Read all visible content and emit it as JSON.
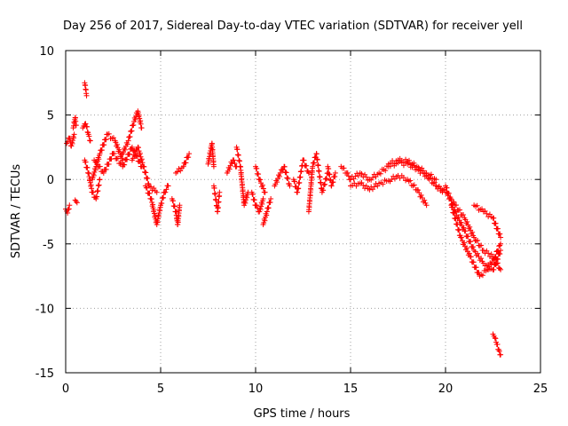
{
  "chart_data": {
    "type": "scatter",
    "title": "Day 256 of 2017, Sidereal Day-to-day VTEC variation (SDTVAR) for receiver yell",
    "xlabel": "GPS time / hours",
    "ylabel": "SDTVAR / TECUs",
    "xlim": [
      0,
      25
    ],
    "ylim": [
      -15,
      10
    ],
    "xticks": [
      "0",
      "5",
      "10",
      "15",
      "20",
      "25"
    ],
    "yticks": [
      "10",
      "5",
      "0",
      "-5",
      "-10",
      "-15"
    ],
    "xtick_values": [
      0,
      5,
      10,
      15,
      20,
      25
    ],
    "ytick_values": [
      10,
      5,
      0,
      -5,
      -10,
      -15
    ],
    "grid": true,
    "marker": "+",
    "series": [
      {
        "name": "SDTVAR",
        "color": "#ff0000",
        "segments": [
          {
            "x": [
              0.05,
              0.2,
              0.3,
              0.45
            ],
            "y": [
              2.8,
              3.2,
              2.6,
              3.5
            ]
          },
          {
            "x": [
              0.0,
              0.1,
              0.2
            ],
            "y": [
              -2.3,
              -2.6,
              -2.0
            ]
          },
          {
            "x": [
              0.4,
              0.5,
              0.55
            ],
            "y": [
              4.0,
              4.8,
              4.2
            ]
          },
          {
            "x": [
              0.5,
              0.6
            ],
            "y": [
              -1.6,
              -1.8
            ]
          },
          {
            "x": [
              1.0,
              1.05,
              1.1
            ],
            "y": [
              7.5,
              7.0,
              6.5
            ]
          },
          {
            "x": [
              0.9,
              1.0,
              1.1,
              1.2,
              1.3
            ],
            "y": [
              4.0,
              4.3,
              4.1,
              3.5,
              3.0
            ]
          },
          {
            "x": [
              1.0,
              1.2,
              1.4,
              1.6,
              1.8
            ],
            "y": [
              1.5,
              0.5,
              -1.0,
              -1.5,
              0.0
            ]
          },
          {
            "x": [
              1.4,
              1.8,
              2.2,
              2.6,
              3.0
            ],
            "y": [
              0.0,
              2.0,
              3.5,
              3.0,
              1.5
            ]
          },
          {
            "x": [
              1.5,
              2.0,
              2.5,
              3.0,
              3.5,
              4.0
            ],
            "y": [
              1.5,
              0.5,
              2.0,
              1.0,
              2.5,
              1.0
            ]
          },
          {
            "x": [
              3.0,
              3.3,
              3.6,
              3.8,
              4.0
            ],
            "y": [
              2.0,
              3.0,
              4.5,
              5.3,
              4.0
            ]
          },
          {
            "x": [
              3.5,
              3.8,
              4.1,
              4.4,
              4.8
            ],
            "y": [
              1.5,
              2.5,
              1.0,
              -0.5,
              -1.0
            ]
          },
          {
            "x": [
              4.2,
              4.5,
              4.8,
              5.0,
              5.2,
              5.4
            ],
            "y": [
              -0.5,
              -1.5,
              -3.5,
              -2.0,
              -1.0,
              -0.5
            ]
          },
          {
            "x": [
              5.6,
              5.8,
              5.9,
              6.0
            ],
            "y": [
              -1.5,
              -2.5,
              -3.5,
              -2.0
            ]
          },
          {
            "x": [
              5.8,
              6.2,
              6.5
            ],
            "y": [
              0.5,
              1.0,
              2.0
            ]
          },
          {
            "x": [
              7.5,
              7.7,
              7.8
            ],
            "y": [
              1.2,
              2.8,
              1.0
            ]
          },
          {
            "x": [
              7.8,
              8.0,
              8.1
            ],
            "y": [
              -0.5,
              -2.5,
              -1.0
            ]
          },
          {
            "x": [
              8.5,
              8.8,
              9.0
            ],
            "y": [
              0.5,
              1.5,
              1.0
            ]
          },
          {
            "x": [
              9.0,
              9.2,
              9.4,
              9.6
            ],
            "y": [
              2.5,
              1.0,
              -2.0,
              -1.0
            ]
          },
          {
            "x": [
              9.8,
              10.0,
              10.2,
              10.4
            ],
            "y": [
              -1.0,
              -2.0,
              -2.5,
              -1.5
            ]
          },
          {
            "x": [
              10.4,
              10.6,
              10.8
            ],
            "y": [
              -3.5,
              -2.5,
              -1.5
            ]
          },
          {
            "x": [
              10.0,
              10.2,
              10.5
            ],
            "y": [
              1.0,
              0.0,
              -1.0
            ]
          },
          {
            "x": [
              11.0,
              11.3,
              11.5,
              11.8
            ],
            "y": [
              -0.5,
              0.5,
              1.0,
              -0.5
            ]
          },
          {
            "x": [
              12.0,
              12.2,
              12.5,
              12.8
            ],
            "y": [
              0.0,
              -1.0,
              1.5,
              0.5
            ]
          },
          {
            "x": [
              12.8,
              13.0,
              13.2,
              13.5,
              13.8
            ],
            "y": [
              -2.5,
              1.0,
              2.0,
              -1.0,
              0.5
            ]
          },
          {
            "x": [
              13.8,
              14.0,
              14.2
            ],
            "y": [
              1.0,
              -0.5,
              0.5
            ]
          },
          {
            "x": [
              14.5,
              14.8,
              15.0,
              15.5,
              16.0,
              16.5,
              17.0,
              17.5,
              18.0,
              18.5,
              19.0,
              19.5,
              20.0
            ],
            "y": [
              1.0,
              0.5,
              0.0,
              0.5,
              0.0,
              0.5,
              1.0,
              1.3,
              1.2,
              0.8,
              0.3,
              -0.5,
              -1.0
            ]
          },
          {
            "x": [
              15.0,
              15.5,
              16.0,
              16.5,
              17.0,
              17.5,
              18.0,
              18.5,
              19.0
            ],
            "y": [
              -0.5,
              -0.3,
              -0.8,
              -0.3,
              -0.1,
              0.3,
              0.0,
              -0.8,
              -2.0
            ]
          },
          {
            "x": [
              17.0,
              17.5,
              18.0,
              18.5,
              19.0,
              19.5
            ],
            "y": [
              1.2,
              1.5,
              1.4,
              1.0,
              0.5,
              0.0
            ]
          },
          {
            "x": [
              19.5,
              20.0,
              20.5,
              21.0,
              21.5,
              22.0,
              22.5,
              22.9
            ],
            "y": [
              -0.5,
              -1.0,
              -2.0,
              -3.0,
              -4.5,
              -5.5,
              -6.0,
              -7.0
            ]
          },
          {
            "x": [
              20.0,
              20.5,
              21.0,
              21.5,
              22.0,
              22.5,
              22.9
            ],
            "y": [
              -0.5,
              -2.5,
              -4.0,
              -5.5,
              -6.5,
              -7.0,
              -5.5
            ]
          },
          {
            "x": [
              20.3,
              20.8,
              21.3,
              21.8,
              22.2,
              22.6,
              22.9
            ],
            "y": [
              -2.0,
              -4.5,
              -6.0,
              -7.5,
              -7.0,
              -6.0,
              -5.0
            ]
          },
          {
            "x": [
              21.5,
              22.0,
              22.5,
              22.9
            ],
            "y": [
              -2.0,
              -2.5,
              -3.0,
              -4.5
            ]
          },
          {
            "x": [
              22.5,
              22.6,
              22.7,
              22.8,
              22.9
            ],
            "y": [
              -12.0,
              -12.3,
              -12.8,
              -13.2,
              -13.6
            ]
          }
        ]
      }
    ]
  }
}
